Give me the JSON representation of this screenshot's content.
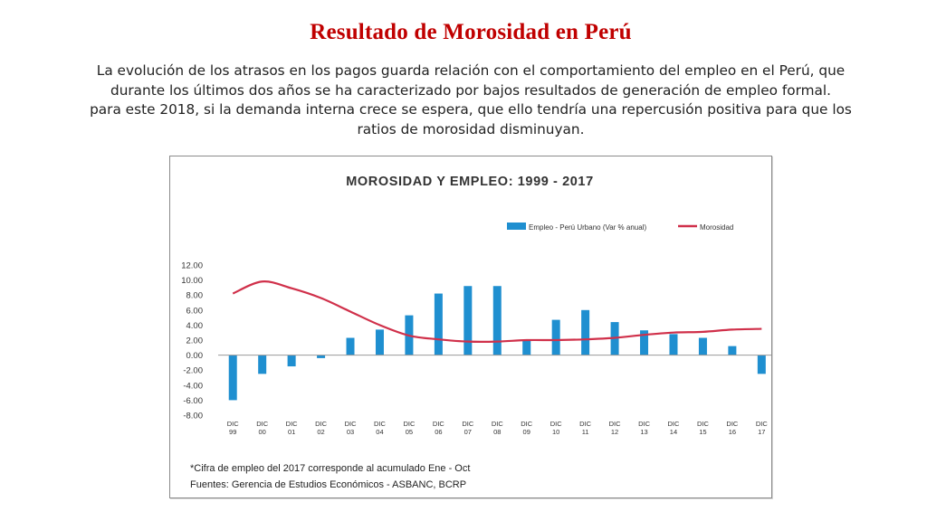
{
  "slide": {
    "title": "Resultado de Morosidad en Perú",
    "body_lines": [
      "La evolución de los atrasos en los pagos guarda relación con el comportamiento del empleo en el Perú, que",
      "durante los últimos dos años se ha caracterizado por bajos resultados de generación de empleo formal.",
      "para este 2018, si la demanda interna crece se espera, que ello tendría una repercusión positiva para que los",
      "ratios de morosidad disminuyan."
    ]
  },
  "chart_data": {
    "type": "bar",
    "title": "MOROSIDAD Y EMPLEO: 1999 - 2017",
    "categories": [
      [
        "DIC",
        "99"
      ],
      [
        "DIC",
        "00"
      ],
      [
        "DIC",
        "01"
      ],
      [
        "DIC",
        "02"
      ],
      [
        "DIC",
        "03"
      ],
      [
        "DIC",
        "04"
      ],
      [
        "DIC",
        "05"
      ],
      [
        "DIC",
        "06"
      ],
      [
        "DIC",
        "07"
      ],
      [
        "DIC",
        "08"
      ],
      [
        "DIC",
        "09"
      ],
      [
        "DIC",
        "10"
      ],
      [
        "DIC",
        "11"
      ],
      [
        "DIC",
        "12"
      ],
      [
        "DIC",
        "13"
      ],
      [
        "DIC",
        "14"
      ],
      [
        "DIC",
        "15"
      ],
      [
        "DIC",
        "16"
      ],
      [
        "DIC",
        "17"
      ]
    ],
    "series": [
      {
        "name": "Empleo - Perú Urbano (Var % anual)",
        "type": "bar",
        "color": "#1f8fd0",
        "values": [
          -6.0,
          -2.5,
          -1.5,
          -0.4,
          2.3,
          3.4,
          5.3,
          8.2,
          9.2,
          9.2,
          2.0,
          4.7,
          6.0,
          4.4,
          3.3,
          2.8,
          2.3,
          1.2,
          -2.5
        ]
      },
      {
        "name": "Morosidad",
        "type": "line",
        "color": "#d0304a",
        "values": [
          8.2,
          9.8,
          8.9,
          7.6,
          5.8,
          4.0,
          2.6,
          2.1,
          1.8,
          1.8,
          2.0,
          2.0,
          2.1,
          2.3,
          2.7,
          3.0,
          3.1,
          3.4,
          3.5
        ]
      }
    ],
    "ylim": [
      -8,
      12
    ],
    "yticks": [
      "12.00",
      "10.00",
      "8.00",
      "6.00",
      "4.00",
      "2.00",
      "0.00",
      "-2.00",
      "-4.00",
      "-6.00",
      "-8.00"
    ],
    "legend": "top-right",
    "grid": false,
    "xlabel": "",
    "ylabel": "",
    "footnotes": [
      "*Cifra de empleo del 2017 corresponde al acumulado Ene - Oct",
      "Fuentes: Gerencia de Estudios Económicos - ASBANC, BCRP"
    ]
  }
}
